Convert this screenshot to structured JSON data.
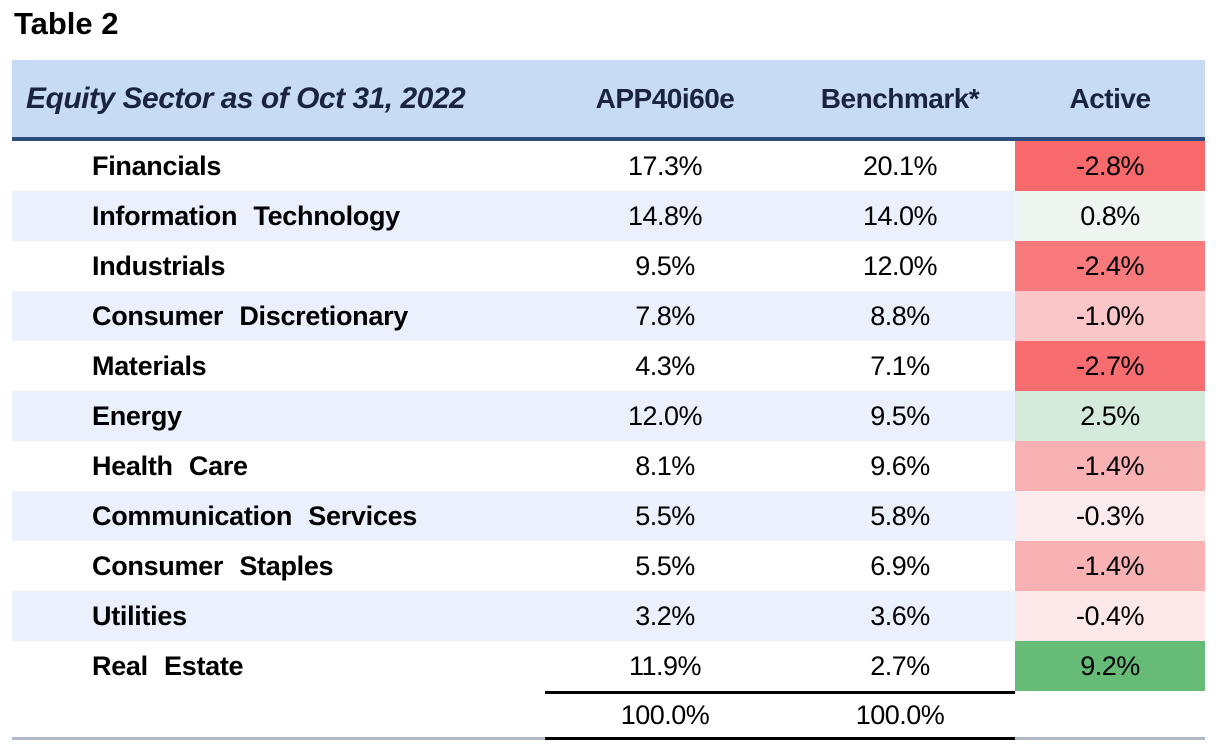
{
  "page_title": "Table 2",
  "table": {
    "header": {
      "sector_label": "Equity Sector as of Oct 31, 2022",
      "columns": [
        "APP40i60e",
        "Benchmark*",
        "Active"
      ]
    },
    "rows": [
      {
        "sector": "Financials",
        "app": "17.3%",
        "benchmark": "20.1%",
        "active": "-2.8%",
        "active_bg": "#F8696B"
      },
      {
        "sector": "Information Technology",
        "app": "14.8%",
        "benchmark": "14.0%",
        "active": "0.8%",
        "active_bg": "#EFF6F1"
      },
      {
        "sector": "Industrials",
        "app": "9.5%",
        "benchmark": "12.0%",
        "active": "-2.4%",
        "active_bg": "#F87A7C"
      },
      {
        "sector": "Consumer Discretionary",
        "app": "7.8%",
        "benchmark": "8.8%",
        "active": "-1.0%",
        "active_bg": "#FAC6C8"
      },
      {
        "sector": "Materials",
        "app": "4.3%",
        "benchmark": "7.1%",
        "active": "-2.7%",
        "active_bg": "#F86E70"
      },
      {
        "sector": "Energy",
        "app": "12.0%",
        "benchmark": "9.5%",
        "active": "2.5%",
        "active_bg": "#D4EBDB"
      },
      {
        "sector": "Health Care",
        "app": "8.1%",
        "benchmark": "9.6%",
        "active": "-1.4%",
        "active_bg": "#F9B2B4"
      },
      {
        "sector": "Communication Services",
        "app": "5.5%",
        "benchmark": "5.8%",
        "active": "-0.3%",
        "active_bg": "#FCEBEC"
      },
      {
        "sector": "Consumer Staples",
        "app": "5.5%",
        "benchmark": "6.9%",
        "active": "-1.4%",
        "active_bg": "#F9B2B4"
      },
      {
        "sector": "Utilities",
        "app": "3.2%",
        "benchmark": "3.6%",
        "active": "-0.4%",
        "active_bg": "#FCE8E9"
      },
      {
        "sector": "Real Estate",
        "app": "11.9%",
        "benchmark": "2.7%",
        "active": "9.2%",
        "active_bg": "#66BB76"
      }
    ],
    "totals": {
      "app": "100.0%",
      "benchmark": "100.0%"
    }
  },
  "colors": {
    "header_bg": "#C8DBF5",
    "header_text": "#1A2440",
    "header_rule": "#2E4C7E",
    "stripe_bg": "#EAF1FC",
    "bottom_rule": "#AFB8C6",
    "negative_strong": "#F8696B",
    "positive_strong": "#66BB76"
  }
}
